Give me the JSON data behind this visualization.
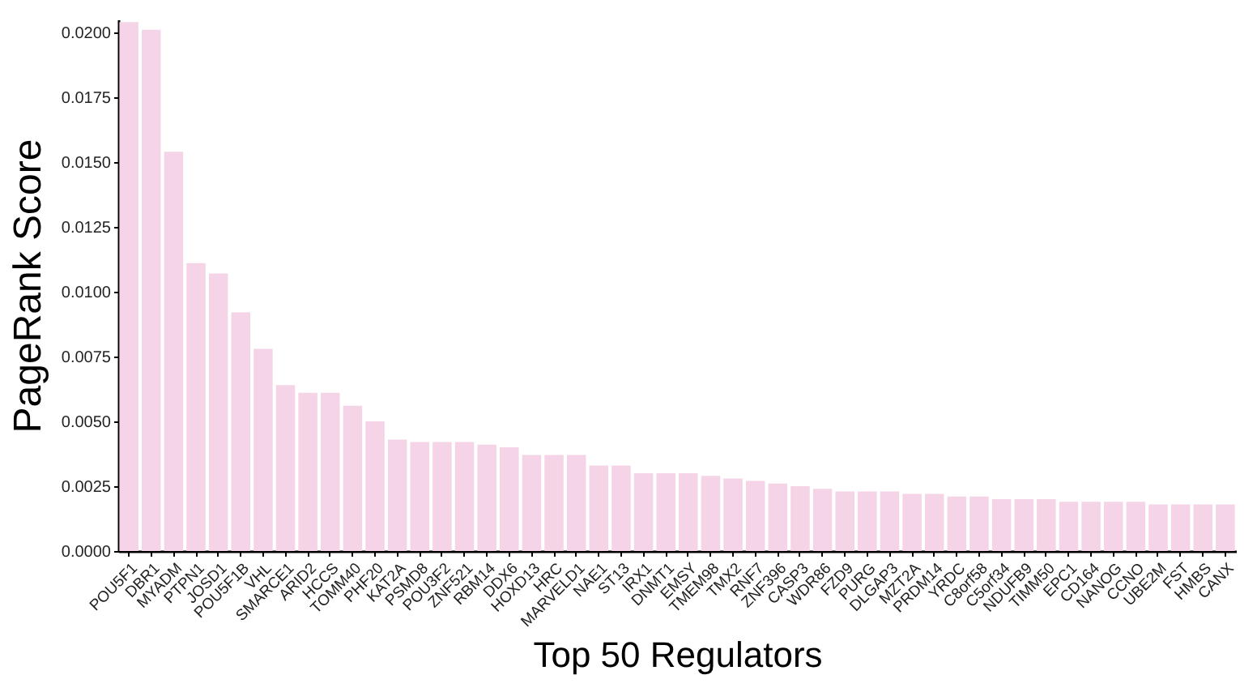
{
  "chart_data": {
    "type": "bar",
    "xlabel": "Top 50 Regulators",
    "ylabel": "PageRank Score",
    "categories": [
      "POU5F1",
      "DBR1",
      "MYADM",
      "PTPN1",
      "JOSD1",
      "POU5F1B",
      "VHL",
      "SMARCE1",
      "ARID2",
      "HCCS",
      "TOMM40",
      "PHF20",
      "KAT2A",
      "PSMD8",
      "POU3F2",
      "ZNF521",
      "RBM14",
      "DDX6",
      "HOXD13",
      "HRC",
      "MARVELD1",
      "NAE1",
      "ST13",
      "IRX1",
      "DNMT1",
      "EMSY",
      "TMEM98",
      "TMX2",
      "RNF7",
      "ZNF396",
      "CASP3",
      "WDR86",
      "FZD9",
      "PURG",
      "DLGAP3",
      "MZT2A",
      "PRDM14",
      "YRDC",
      "C8orf58",
      "C5orf34",
      "NDUFB9",
      "TIMM50",
      "EPC1",
      "CD164",
      "NANOG",
      "CCNO",
      "UBE2M",
      "FST",
      "HMBS",
      "CANX"
    ],
    "values": [
      0.0204,
      0.0201,
      0.0154,
      0.0111,
      0.0107,
      0.0092,
      0.0078,
      0.0064,
      0.0061,
      0.0061,
      0.0056,
      0.005,
      0.0043,
      0.0042,
      0.0042,
      0.0042,
      0.0041,
      0.004,
      0.0037,
      0.0037,
      0.0037,
      0.0033,
      0.0033,
      0.003,
      0.003,
      0.003,
      0.0029,
      0.0028,
      0.0027,
      0.0026,
      0.0025,
      0.0024,
      0.0023,
      0.0023,
      0.0023,
      0.0022,
      0.0022,
      0.0021,
      0.0021,
      0.002,
      0.002,
      0.002,
      0.0019,
      0.0019,
      0.0019,
      0.0019,
      0.0018,
      0.0018,
      0.0018,
      0.0018
    ],
    "color": "#f4d4e6",
    "ylim": [
      0,
      0.0205
    ],
    "yticks": [
      {
        "value": 0,
        "label": "0.0000"
      },
      {
        "value": 0.0025,
        "label": "0.0025"
      },
      {
        "value": 0.005,
        "label": "0.0050"
      },
      {
        "value": 0.0075,
        "label": "0.0075"
      },
      {
        "value": 0.01,
        "label": "0.0100"
      },
      {
        "value": 0.0125,
        "label": "0.0125"
      },
      {
        "value": 0.015,
        "label": "0.0150"
      },
      {
        "value": 0.0175,
        "label": "0.0175"
      },
      {
        "value": 0.02,
        "label": "0.0200"
      }
    ],
    "grid": false
  }
}
